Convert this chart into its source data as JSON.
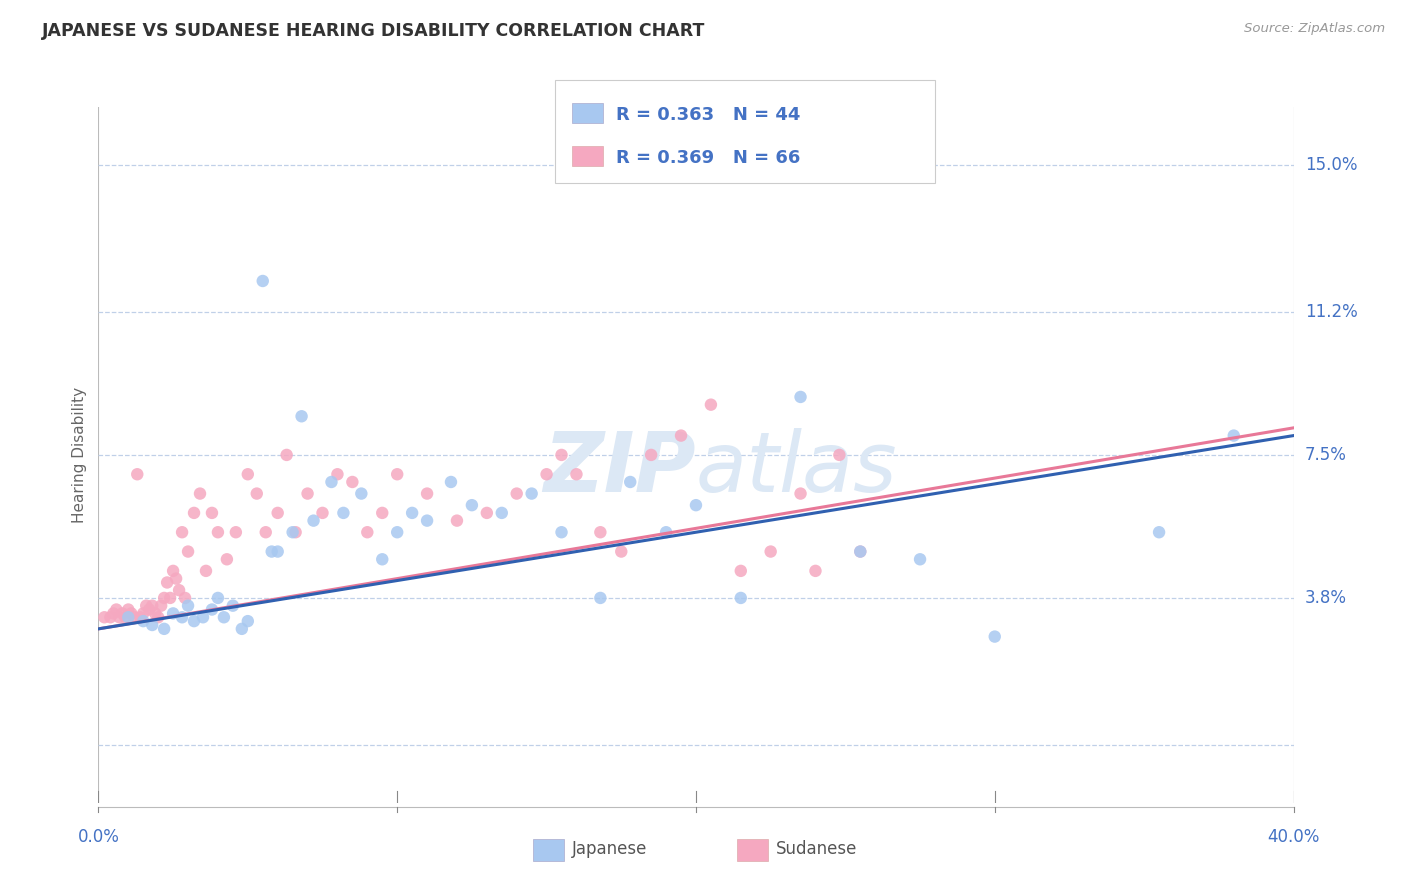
{
  "title": "JAPANESE VS SUDANESE HEARING DISABILITY CORRELATION CHART",
  "source": "Source: ZipAtlas.com",
  "ylabel": "Hearing Disability",
  "yticks": [
    0.0,
    0.038,
    0.075,
    0.112,
    0.15
  ],
  "ytick_labels": [
    "",
    "3.8%",
    "7.5%",
    "11.2%",
    "15.0%"
  ],
  "xtick_vals": [
    0.0,
    0.1,
    0.2,
    0.3,
    0.4
  ],
  "xmin": 0.0,
  "xmax": 0.4,
  "ymin": -0.015,
  "ymax": 0.165,
  "legend_R": [
    0.363,
    0.369
  ],
  "legend_N": [
    44,
    66
  ],
  "japanese_color": "#a8c8f0",
  "sudanese_color": "#f5a8c0",
  "line_blue_color": "#3060b0",
  "line_pink_color": "#e87898",
  "background_color": "#ffffff",
  "grid_color": "#c0d0e8",
  "watermark_color": "#dce8f5",
  "japanese_scatter_x": [
    0.01,
    0.015,
    0.018,
    0.022,
    0.025,
    0.028,
    0.03,
    0.032,
    0.035,
    0.038,
    0.04,
    0.042,
    0.045,
    0.048,
    0.05,
    0.055,
    0.058,
    0.06,
    0.065,
    0.068,
    0.072,
    0.078,
    0.082,
    0.088,
    0.095,
    0.1,
    0.105,
    0.11,
    0.118,
    0.125,
    0.135,
    0.145,
    0.155,
    0.168,
    0.178,
    0.19,
    0.2,
    0.215,
    0.235,
    0.255,
    0.275,
    0.3,
    0.355,
    0.38
  ],
  "japanese_scatter_y": [
    0.033,
    0.032,
    0.031,
    0.03,
    0.034,
    0.033,
    0.036,
    0.032,
    0.033,
    0.035,
    0.038,
    0.033,
    0.036,
    0.03,
    0.032,
    0.12,
    0.05,
    0.05,
    0.055,
    0.085,
    0.058,
    0.068,
    0.06,
    0.065,
    0.048,
    0.055,
    0.06,
    0.058,
    0.068,
    0.062,
    0.06,
    0.065,
    0.055,
    0.038,
    0.068,
    0.055,
    0.062,
    0.038,
    0.09,
    0.05,
    0.048,
    0.028,
    0.055,
    0.08
  ],
  "sudanese_scatter_x": [
    0.002,
    0.004,
    0.005,
    0.006,
    0.007,
    0.008,
    0.009,
    0.01,
    0.011,
    0.012,
    0.013,
    0.014,
    0.015,
    0.016,
    0.017,
    0.018,
    0.019,
    0.02,
    0.021,
    0.022,
    0.023,
    0.024,
    0.025,
    0.026,
    0.027,
    0.028,
    0.029,
    0.03,
    0.032,
    0.034,
    0.036,
    0.038,
    0.04,
    0.043,
    0.046,
    0.05,
    0.053,
    0.056,
    0.06,
    0.063,
    0.066,
    0.07,
    0.075,
    0.08,
    0.085,
    0.09,
    0.095,
    0.1,
    0.11,
    0.12,
    0.13,
    0.14,
    0.15,
    0.155,
    0.16,
    0.168,
    0.175,
    0.185,
    0.195,
    0.205,
    0.215,
    0.225,
    0.235,
    0.24,
    0.248,
    0.255
  ],
  "sudanese_scatter_y": [
    0.033,
    0.033,
    0.034,
    0.035,
    0.033,
    0.034,
    0.033,
    0.035,
    0.034,
    0.033,
    0.07,
    0.033,
    0.034,
    0.036,
    0.035,
    0.036,
    0.034,
    0.033,
    0.036,
    0.038,
    0.042,
    0.038,
    0.045,
    0.043,
    0.04,
    0.055,
    0.038,
    0.05,
    0.06,
    0.065,
    0.045,
    0.06,
    0.055,
    0.048,
    0.055,
    0.07,
    0.065,
    0.055,
    0.06,
    0.075,
    0.055,
    0.065,
    0.06,
    0.07,
    0.068,
    0.055,
    0.06,
    0.07,
    0.065,
    0.058,
    0.06,
    0.065,
    0.07,
    0.075,
    0.07,
    0.055,
    0.05,
    0.075,
    0.08,
    0.088,
    0.045,
    0.05,
    0.065,
    0.045,
    0.075,
    0.05
  ],
  "line_x_start": 0.0,
  "line_x_end": 0.4,
  "line_blue_y_start": 0.03,
  "line_blue_y_end": 0.08,
  "line_pink_y_start": 0.03,
  "line_pink_y_end": 0.082
}
